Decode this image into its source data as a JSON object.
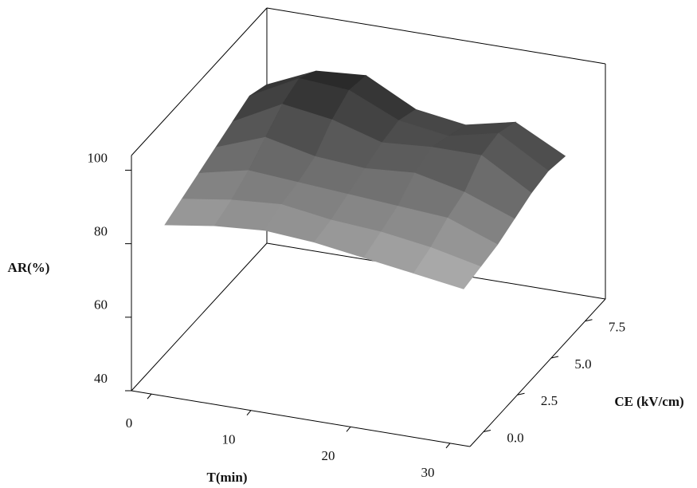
{
  "chart_data": {
    "type": "surface",
    "zlabel": "AR(%)",
    "xlabel": "T(min)",
    "ylabel": "CE (kV/cm)",
    "x": [
      0,
      5,
      10,
      15,
      20,
      25,
      30
    ],
    "y": [
      0,
      1.25,
      2.5,
      3.75,
      5,
      6.25,
      7.5
    ],
    "z": [
      [
        82,
        84,
        85,
        84,
        82,
        80,
        78
      ],
      [
        84,
        86,
        87,
        85,
        84,
        82,
        79
      ],
      [
        86,
        89,
        88,
        87,
        86,
        85,
        80
      ],
      [
        88,
        93,
        90,
        89,
        90,
        87,
        82
      ],
      [
        90,
        97,
        95,
        91,
        92,
        92,
        84
      ],
      [
        92,
        99,
        98,
        92,
        90,
        93,
        85
      ],
      [
        90,
        96,
        97,
        90,
        88,
        91,
        84
      ]
    ],
    "xlim": [
      -2,
      32
    ],
    "xticks": [
      0,
      10,
      20,
      30
    ],
    "ylim": [
      -1,
      9
    ],
    "yticks": [
      {
        "value": 0,
        "label": "0.0"
      },
      2.5,
      {
        "value": 5,
        "label": "5.0"
      },
      7.5
    ],
    "zlim": [
      40,
      104
    ],
    "zticks": [
      40,
      60,
      80,
      100
    ],
    "colormap": [
      "#b4b4b4",
      "#1e1e1e"
    ]
  }
}
